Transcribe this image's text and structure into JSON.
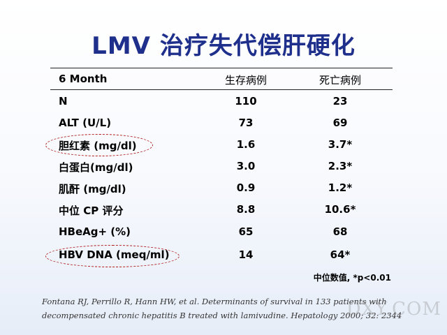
{
  "title": "LMV 治疗失代偿肝硬化",
  "table": {
    "header": {
      "label": "6 Month",
      "col1": "生存病例",
      "col2": "死亡病例"
    },
    "rows": [
      {
        "label": "N",
        "v1": "110",
        "v2": "23"
      },
      {
        "label": "ALT (U/L)",
        "v1": "73",
        "v2": "69"
      },
      {
        "label": "胆红素 (mg/dl)",
        "v1": "1.6",
        "v2": "3.7*"
      },
      {
        "label": "白蛋白(mg/dl)",
        "v1": "3.0",
        "v2": "2.3*"
      },
      {
        "label": "肌酐 (mg/dl)",
        "v1": "0.9",
        "v2": "1.2*"
      },
      {
        "label": "中位 CP 评分",
        "v1": "8.8",
        "v2": "10.6*"
      },
      {
        "label": "HBeAg+ (%)",
        "v1": "65",
        "v2": "68"
      },
      {
        "label": "HBV DNA (meq/ml)",
        "v1": "14",
        "v2": "64*"
      }
    ]
  },
  "footnote": "中位数值, *p<0.01",
  "citation_line1": "Fontana RJ, Perrillo R, Hann HW, et al. Determinants of survival in 133 patients with",
  "citation_line2": "decompensated chronic hepatitis B treated with lamivudine. Hepatology 2000; 32: 2344",
  "watermark": "DXY.COM",
  "colors": {
    "title": "#1e2f8c",
    "circle": "#b01a1a"
  }
}
